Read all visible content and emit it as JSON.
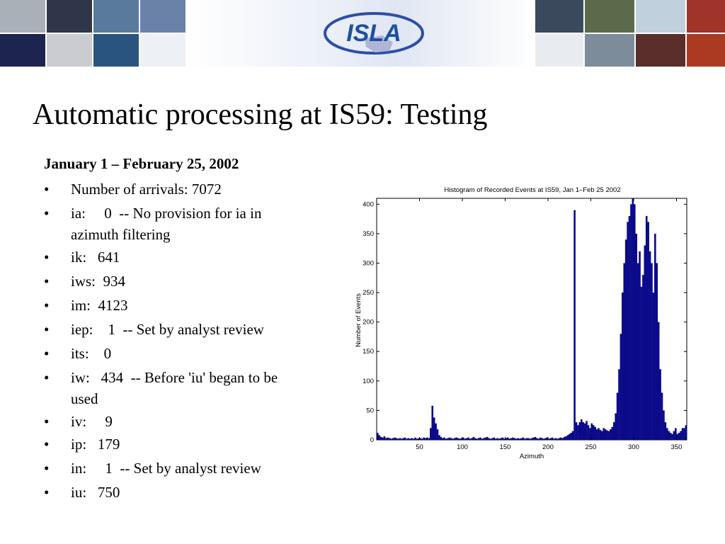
{
  "slide": {
    "title": "Automatic processing at IS59: Testing",
    "date_range": "January 1 – February 25, 2002",
    "bullet_symbol": "•",
    "bullets": [
      {
        "label": "Number of arrivals: 7072"
      },
      {
        "label": "ia:     0  -- No provision for ia in",
        "cont": "azimuth filtering"
      },
      {
        "label": "ik:   641"
      },
      {
        "label": "iws:  934"
      },
      {
        "label": "im:  4123"
      },
      {
        "label": "iep:    1  -- Set by analyst review"
      },
      {
        "label": "its:    0"
      },
      {
        "label": "iw:   434  -- Before 'iu' began to be",
        "cont": "used"
      },
      {
        "label": "iv:     9"
      },
      {
        "label": "ip:   179"
      },
      {
        "label": "in:     1  -- Set by analyst review"
      },
      {
        "label": "iu:   750"
      }
    ]
  },
  "banner": {
    "logo_text": "ISLA",
    "logo_colors": {
      "ring": "#2c4da8",
      "text": "#1e4fa0",
      "map": "#b0b5d8",
      "shadow": "#7f88b8"
    },
    "tile_colors": [
      "#aab0b8",
      "#1e2450",
      "#caccd2",
      "#30364a",
      "#5a7a9c",
      "#2a5480",
      "#edf0f4",
      "#ffffff",
      "#6a82a8",
      "#e2e6ec",
      "#3a4a5c",
      "#2c3e30",
      "#5c6a4c",
      "#4a5060",
      "#e8ecf0",
      "#7c8c9a",
      "#282838",
      "#5a2e2a",
      "#c0d0dc",
      "#3c1c1a",
      "#a0332a",
      "#aa3a22"
    ]
  },
  "chart_data": {
    "type": "bar",
    "title": "Histogram of Recorded Events at IS59, Jan 1–Feb 25 2002",
    "xlabel": "Azimuth",
    "ylabel": "Number of Events",
    "xlim": [
      0,
      362
    ],
    "ylim": [
      0,
      410
    ],
    "xticks": [
      50,
      100,
      150,
      200,
      250,
      300,
      350
    ],
    "yticks": [
      0,
      50,
      100,
      150,
      200,
      250,
      300,
      350,
      400
    ],
    "bin_width": 2,
    "bar_color": "#0a0a8a",
    "x": [
      1,
      3,
      5,
      7,
      9,
      11,
      13,
      15,
      17,
      19,
      21,
      23,
      25,
      27,
      29,
      31,
      33,
      35,
      37,
      39,
      41,
      43,
      45,
      47,
      49,
      51,
      53,
      55,
      57,
      59,
      61,
      63,
      65,
      67,
      69,
      71,
      73,
      75,
      77,
      79,
      81,
      83,
      85,
      87,
      89,
      91,
      93,
      95,
      97,
      99,
      101,
      103,
      105,
      107,
      109,
      111,
      113,
      115,
      117,
      119,
      121,
      123,
      125,
      127,
      129,
      131,
      133,
      135,
      137,
      139,
      141,
      143,
      145,
      147,
      149,
      151,
      153,
      155,
      157,
      159,
      161,
      163,
      165,
      167,
      169,
      171,
      173,
      175,
      177,
      179,
      181,
      183,
      185,
      187,
      189,
      191,
      193,
      195,
      197,
      199,
      201,
      203,
      205,
      207,
      209,
      211,
      213,
      215,
      217,
      219,
      221,
      223,
      225,
      227,
      229,
      231,
      233,
      235,
      237,
      239,
      241,
      243,
      245,
      247,
      249,
      251,
      253,
      255,
      257,
      259,
      261,
      263,
      265,
      267,
      269,
      271,
      273,
      275,
      277,
      279,
      281,
      283,
      285,
      287,
      289,
      291,
      293,
      295,
      297,
      299,
      301,
      303,
      305,
      307,
      309,
      311,
      313,
      315,
      317,
      319,
      321,
      323,
      325,
      327,
      329,
      331,
      333,
      335,
      337,
      339,
      341,
      343,
      345,
      347,
      349,
      351,
      353,
      355,
      357,
      359,
      361
    ],
    "values": [
      12,
      8,
      5,
      4,
      6,
      3,
      4,
      3,
      2,
      3,
      4,
      3,
      2,
      3,
      2,
      3,
      4,
      2,
      3,
      2,
      3,
      2,
      4,
      2,
      3,
      3,
      2,
      4,
      3,
      4,
      3,
      20,
      58,
      38,
      28,
      18,
      8,
      5,
      3,
      4,
      2,
      3,
      4,
      3,
      2,
      3,
      4,
      3,
      2,
      3,
      4,
      2,
      3,
      4,
      2,
      3,
      5,
      3,
      2,
      3,
      4,
      2,
      3,
      4,
      5,
      3,
      2,
      3,
      4,
      2,
      3,
      2,
      3,
      4,
      2,
      3,
      4,
      2,
      3,
      4,
      3,
      2,
      3,
      2,
      3,
      4,
      2,
      3,
      3,
      2,
      3,
      4,
      5,
      3,
      2,
      4,
      3,
      2,
      3,
      4,
      2,
      3,
      4,
      2,
      3,
      2,
      3,
      4,
      3,
      5,
      6,
      8,
      10,
      12,
      15,
      390,
      30,
      25,
      30,
      35,
      30,
      28,
      32,
      25,
      20,
      28,
      25,
      22,
      18,
      20,
      17,
      15,
      20,
      18,
      16,
      15,
      18,
      22,
      30,
      45,
      80,
      120,
      180,
      250,
      300,
      340,
      370,
      380,
      400,
      430,
      400,
      350,
      300,
      320,
      260,
      280,
      330,
      380,
      370,
      320,
      300,
      250,
      350,
      300,
      200,
      120,
      80,
      50,
      30,
      20,
      15,
      12,
      10,
      15,
      20,
      10,
      12,
      15,
      20,
      20,
      25
    ]
  }
}
